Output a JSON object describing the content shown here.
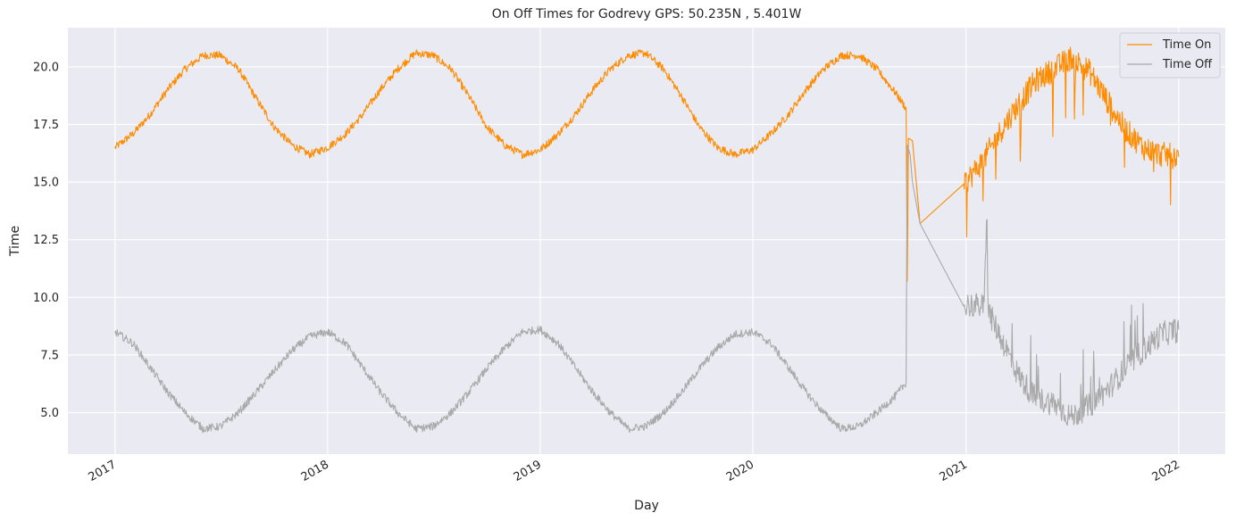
{
  "chart_data": {
    "type": "line",
    "title": "On Off Times for Godrevy  GPS: 50.235N , 5.401W",
    "xlabel": "Day",
    "ylabel": "Time",
    "xlim": [
      "2016-10-12",
      "2022-03-22"
    ],
    "ylim": [
      3.2,
      21.7
    ],
    "x_ticks": [
      "2017",
      "2018",
      "2019",
      "2020",
      "2021",
      "2022"
    ],
    "y_ticks": [
      "5.0",
      "7.5",
      "10.0",
      "12.5",
      "15.0",
      "17.5",
      "20.0"
    ],
    "grid": true,
    "legend_position": "top-right",
    "background": "#eaeaf2",
    "series": [
      {
        "name": "Time On",
        "color": "#ff8c00",
        "points": [
          [
            "2017-01-01",
            16.5
          ],
          [
            "2017-02-01",
            17.1
          ],
          [
            "2017-03-01",
            17.9
          ],
          [
            "2017-04-01",
            19.0
          ],
          [
            "2017-05-01",
            19.9
          ],
          [
            "2017-06-01",
            20.5
          ],
          [
            "2017-07-01",
            20.5
          ],
          [
            "2017-08-01",
            19.9
          ],
          [
            "2017-09-01",
            18.6
          ],
          [
            "2017-10-01",
            17.4
          ],
          [
            "2017-11-01",
            16.6
          ],
          [
            "2017-12-01",
            16.2
          ],
          [
            "2018-01-01",
            16.5
          ],
          [
            "2018-02-01",
            17.1
          ],
          [
            "2018-03-01",
            17.9
          ],
          [
            "2018-04-01",
            19.0
          ],
          [
            "2018-05-01",
            19.9
          ],
          [
            "2018-06-01",
            20.6
          ],
          [
            "2018-07-01",
            20.5
          ],
          [
            "2018-08-01",
            19.9
          ],
          [
            "2018-09-01",
            18.7
          ],
          [
            "2018-10-01",
            17.4
          ],
          [
            "2018-11-01",
            16.6
          ],
          [
            "2018-12-01",
            16.2
          ],
          [
            "2019-01-01",
            16.4
          ],
          [
            "2019-02-01",
            17.1
          ],
          [
            "2019-03-01",
            17.9
          ],
          [
            "2019-04-01",
            19.0
          ],
          [
            "2019-05-01",
            19.9
          ],
          [
            "2019-06-01",
            20.5
          ],
          [
            "2019-07-01",
            20.6
          ],
          [
            "2019-08-01",
            19.9
          ],
          [
            "2019-09-01",
            18.7
          ],
          [
            "2019-10-01",
            17.4
          ],
          [
            "2019-11-01",
            16.5
          ],
          [
            "2019-12-01",
            16.2
          ],
          [
            "2020-01-01",
            16.4
          ],
          [
            "2020-02-01",
            17.1
          ],
          [
            "2020-03-01",
            17.9
          ],
          [
            "2020-04-01",
            19.0
          ],
          [
            "2020-05-01",
            19.9
          ],
          [
            "2020-06-01",
            20.5
          ],
          [
            "2020-07-01",
            20.5
          ],
          [
            "2020-08-01",
            19.9
          ],
          [
            "2020-09-01",
            18.9
          ],
          [
            "2020-09-20",
            18.2
          ],
          [
            "2020-09-22",
            10.7
          ],
          [
            "2020-09-24",
            16.9
          ],
          [
            "2020-10-01",
            16.8
          ],
          [
            "2020-10-14",
            13.2
          ],
          [
            "2020-12-28",
            14.7
          ],
          [
            "2021-01-01",
            15.0
          ],
          [
            "2021-02-01",
            16.0
          ],
          [
            "2021-03-01",
            17.2
          ],
          [
            "2021-04-01",
            18.4
          ],
          [
            "2021-05-01",
            19.4
          ],
          [
            "2021-06-01",
            19.9
          ],
          [
            "2021-07-01",
            20.4
          ],
          [
            "2021-08-01",
            19.8
          ],
          [
            "2021-09-01",
            18.5
          ],
          [
            "2021-10-01",
            17.3
          ],
          [
            "2021-11-01",
            16.5
          ],
          [
            "2021-12-01",
            16.2
          ],
          [
            "2022-01-01",
            16.1
          ]
        ]
      },
      {
        "name": "Time Off",
        "color": "#a9a9a9",
        "points": [
          [
            "2017-01-01",
            8.5
          ],
          [
            "2017-02-01",
            8.0
          ],
          [
            "2017-03-01",
            7.0
          ],
          [
            "2017-04-01",
            5.9
          ],
          [
            "2017-05-01",
            5.0
          ],
          [
            "2017-06-01",
            4.3
          ],
          [
            "2017-07-01",
            4.4
          ],
          [
            "2017-08-01",
            5.0
          ],
          [
            "2017-09-01",
            5.9
          ],
          [
            "2017-10-01",
            6.8
          ],
          [
            "2017-11-01",
            7.7
          ],
          [
            "2017-12-01",
            8.3
          ],
          [
            "2018-01-01",
            8.5
          ],
          [
            "2018-02-01",
            8.0
          ],
          [
            "2018-03-01",
            7.0
          ],
          [
            "2018-04-01",
            5.9
          ],
          [
            "2018-05-01",
            5.0
          ],
          [
            "2018-06-01",
            4.3
          ],
          [
            "2018-07-01",
            4.4
          ],
          [
            "2018-08-01",
            5.0
          ],
          [
            "2018-09-01",
            5.9
          ],
          [
            "2018-10-01",
            6.9
          ],
          [
            "2018-11-01",
            7.8
          ],
          [
            "2018-12-01",
            8.5
          ],
          [
            "2019-01-01",
            8.6
          ],
          [
            "2019-02-01",
            8.0
          ],
          [
            "2019-03-01",
            7.0
          ],
          [
            "2019-04-01",
            5.9
          ],
          [
            "2019-05-01",
            5.0
          ],
          [
            "2019-06-01",
            4.3
          ],
          [
            "2019-07-01",
            4.4
          ],
          [
            "2019-08-01",
            5.0
          ],
          [
            "2019-09-01",
            5.9
          ],
          [
            "2019-10-01",
            6.9
          ],
          [
            "2019-11-01",
            7.8
          ],
          [
            "2019-12-01",
            8.4
          ],
          [
            "2020-01-01",
            8.5
          ],
          [
            "2020-02-01",
            8.0
          ],
          [
            "2020-03-01",
            7.0
          ],
          [
            "2020-04-01",
            5.9
          ],
          [
            "2020-05-01",
            5.0
          ],
          [
            "2020-06-01",
            4.3
          ],
          [
            "2020-07-01",
            4.4
          ],
          [
            "2020-08-01",
            5.0
          ],
          [
            "2020-09-01",
            5.7
          ],
          [
            "2020-09-20",
            6.3
          ],
          [
            "2020-09-22",
            16.6
          ],
          [
            "2020-09-27",
            16.2
          ],
          [
            "2020-10-01",
            15.0
          ],
          [
            "2020-10-14",
            13.2
          ],
          [
            "2020-12-28",
            9.6
          ],
          [
            "2021-01-01",
            9.7
          ],
          [
            "2021-02-01",
            9.6
          ],
          [
            "2021-02-05",
            13.1
          ],
          [
            "2021-02-08",
            9.4
          ],
          [
            "2021-03-01",
            8.3
          ],
          [
            "2021-04-01",
            6.6
          ],
          [
            "2021-05-01",
            5.6
          ],
          [
            "2021-06-01",
            5.4
          ],
          [
            "2021-07-01",
            4.8
          ],
          [
            "2021-08-01",
            5.3
          ],
          [
            "2021-09-01",
            6.0
          ],
          [
            "2021-10-01",
            6.9
          ],
          [
            "2021-11-01",
            7.7
          ],
          [
            "2021-12-01",
            8.4
          ],
          [
            "2022-01-01",
            8.6
          ]
        ]
      }
    ]
  }
}
